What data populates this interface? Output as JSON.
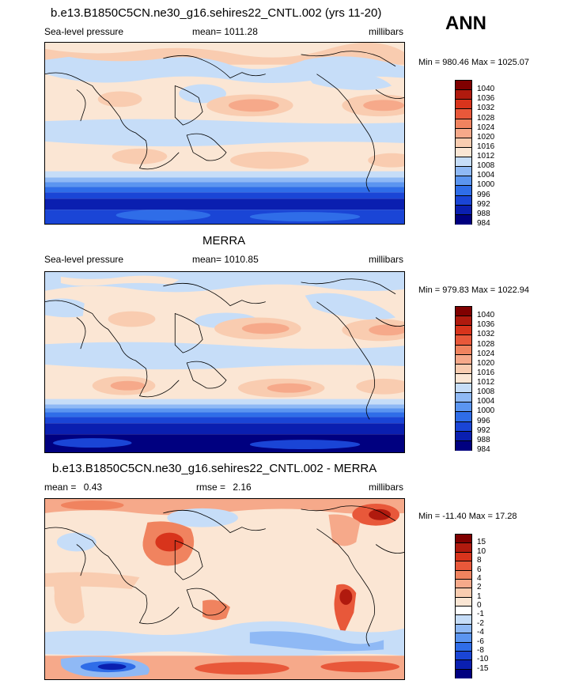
{
  "season": "ANN",
  "colors": {
    "slp_palette": [
      "#000080",
      "#0a1fb0",
      "#1a45d6",
      "#2f6de8",
      "#5b95f0",
      "#8fb9f5",
      "#c6ddf8",
      "#fbe6d4",
      "#f9ccb0",
      "#f6a98a",
      "#f0835f",
      "#e8583a",
      "#d8341c",
      "#b01a0e",
      "#800000"
    ],
    "diff_palette": [
      "#000080",
      "#0a1fb0",
      "#1a45d6",
      "#2f6de8",
      "#5b95f0",
      "#8fb9f5",
      "#c6ddf8",
      "#ffffff",
      "#fbe6d4",
      "#f9ccb0",
      "#f6a98a",
      "#f0835f",
      "#e8583a",
      "#d8341c",
      "#b01a0e",
      "#800000"
    ]
  },
  "panels": [
    {
      "id": "model",
      "title": "b.e13.B1850C5CN.ne30_g16.sehires22_CNTL.002 (yrs 11-20)",
      "variable": "Sea-level pressure",
      "stat_label": "mean=",
      "stat_value": "1011.28",
      "stat2_label": "",
      "stat2_value": "",
      "units": "millibars",
      "minmax": "Min = 980.46 Max = 1025.07",
      "levels": [
        "1040",
        "1036",
        "1032",
        "1028",
        "1024",
        "1020",
        "1016",
        "1012",
        "1008",
        "1004",
        "1000",
        "996",
        "992",
        "988",
        "984"
      ]
    },
    {
      "id": "obs",
      "title": "MERRA",
      "variable": "Sea-level pressure",
      "stat_label": "mean=",
      "stat_value": "1010.85",
      "stat2_label": "",
      "stat2_value": "",
      "units": "millibars",
      "minmax": "Min = 979.83 Max = 1022.94",
      "levels": [
        "1040",
        "1036",
        "1032",
        "1028",
        "1024",
        "1020",
        "1016",
        "1012",
        "1008",
        "1004",
        "1000",
        "996",
        "992",
        "988",
        "984"
      ]
    },
    {
      "id": "diff",
      "title": "b.e13.B1850C5CN.ne30_g16.sehires22_CNTL.002 - MERRA",
      "variable": "",
      "stat_label": "mean =",
      "stat_value": "0.43",
      "stat2_label": "rmse =",
      "stat2_value": "2.16",
      "units": "millibars",
      "minmax": "Min = -11.40 Max =  17.28",
      "levels": [
        "15",
        "10",
        "8",
        "6",
        "4",
        "2",
        "1",
        "0",
        "-1",
        "-2",
        "-4",
        "-6",
        "-8",
        "-10",
        "-15"
      ]
    }
  ]
}
